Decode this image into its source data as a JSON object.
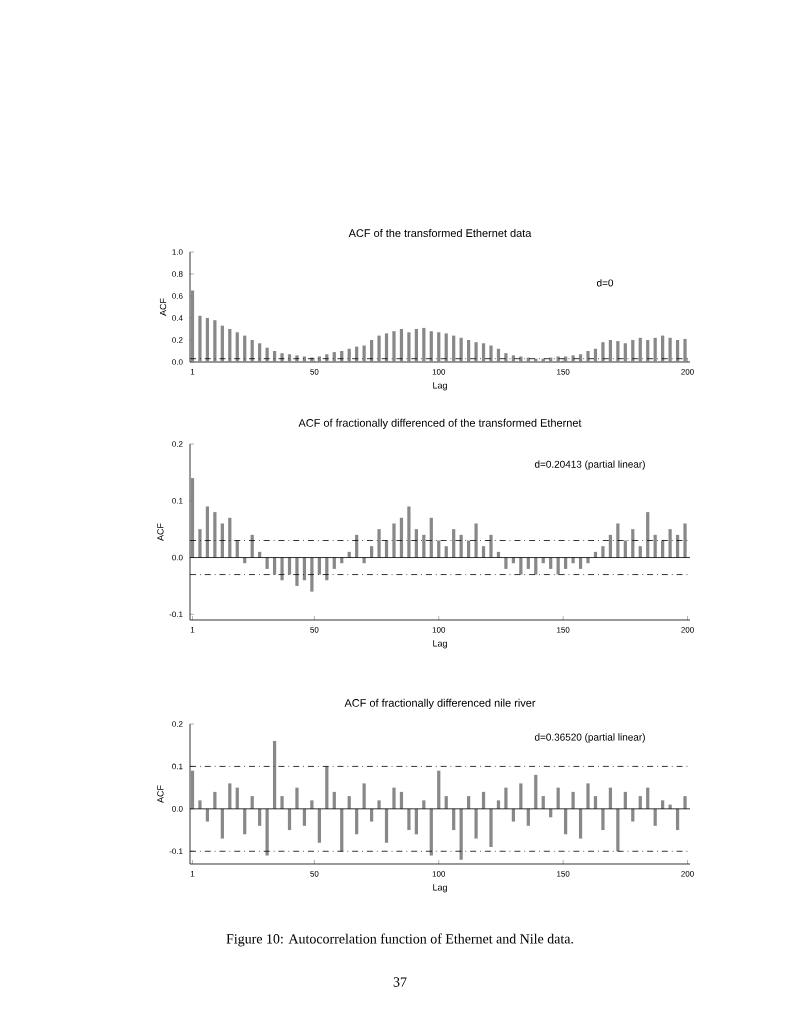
{
  "chart_data": [
    {
      "type": "bar",
      "title": "ACF of the transformed Ethernet data",
      "xlabel": "Lag",
      "ylabel": "ACF",
      "color": "#888888",
      "annotations": [
        "d=0"
      ],
      "x": [
        1,
        4,
        7,
        10,
        13,
        16,
        19,
        22,
        25,
        28,
        31,
        34,
        37,
        40,
        43,
        46,
        49,
        52,
        55,
        58,
        61,
        64,
        67,
        70,
        73,
        76,
        79,
        82,
        85,
        88,
        91,
        94,
        97,
        100,
        103,
        106,
        109,
        112,
        115,
        118,
        121,
        124,
        127,
        130,
        133,
        136,
        139,
        142,
        145,
        148,
        151,
        154,
        157,
        160,
        163,
        166,
        169,
        172,
        175,
        178,
        181,
        184,
        187,
        190,
        193,
        196,
        199
      ],
      "values": [
        0.65,
        0.42,
        0.4,
        0.38,
        0.33,
        0.3,
        0.27,
        0.24,
        0.2,
        0.17,
        0.13,
        0.1,
        0.08,
        0.07,
        0.06,
        0.05,
        0.04,
        0.05,
        0.07,
        0.09,
        0.1,
        0.12,
        0.14,
        0.15,
        0.2,
        0.24,
        0.26,
        0.28,
        0.3,
        0.27,
        0.3,
        0.31,
        0.28,
        0.27,
        0.26,
        0.24,
        0.22,
        0.2,
        0.18,
        0.17,
        0.15,
        0.12,
        0.08,
        0.06,
        0.05,
        0.04,
        0.03,
        0.03,
        0.04,
        0.05,
        0.05,
        0.06,
        0.07,
        0.1,
        0.12,
        0.18,
        0.2,
        0.19,
        0.17,
        0.2,
        0.22,
        0.2,
        0.22,
        0.24,
        0.22,
        0.2,
        0.21
      ],
      "xlim": [
        0,
        201
      ],
      "ylim": [
        0,
        1
      ],
      "xticks": [
        1,
        50,
        100,
        150,
        200
      ],
      "yticks": [
        {
          "value": 0,
          "label": "0.0"
        },
        {
          "value": 0.2,
          "label": "0.2"
        },
        {
          "value": 0.4,
          "label": "0.4"
        },
        {
          "value": 0.6,
          "label": "0.6"
        },
        {
          "value": 0.8,
          "label": "0.8"
        },
        {
          "value": 1,
          "label": "1.0"
        }
      ],
      "ref_lines": [
        {
          "axis": "y",
          "value": 0.03,
          "line_style": "dashed"
        }
      ]
    },
    {
      "type": "bar",
      "title": "ACF of fractionally differenced of the transformed Ethernet",
      "xlabel": "Lag",
      "ylabel": "ACF",
      "color": "#888888",
      "annotations": [
        "d=0.20413 (partial linear)"
      ],
      "x": [
        1,
        4,
        7,
        10,
        13,
        16,
        19,
        22,
        25,
        28,
        31,
        34,
        37,
        40,
        43,
        46,
        49,
        52,
        55,
        58,
        61,
        64,
        67,
        70,
        73,
        76,
        79,
        82,
        85,
        88,
        91,
        94,
        97,
        100,
        103,
        106,
        109,
        112,
        115,
        118,
        121,
        124,
        127,
        130,
        133,
        136,
        139,
        142,
        145,
        148,
        151,
        154,
        157,
        160,
        163,
        166,
        169,
        172,
        175,
        178,
        181,
        184,
        187,
        190,
        193,
        196,
        199
      ],
      "values": [
        0.14,
        0.05,
        0.09,
        0.08,
        0.06,
        0.07,
        0.03,
        -0.01,
        0.04,
        0.01,
        -0.02,
        -0.03,
        -0.04,
        -0.03,
        -0.05,
        -0.04,
        -0.06,
        -0.03,
        -0.04,
        -0.02,
        -0.01,
        0.01,
        0.04,
        -0.01,
        0.02,
        0.05,
        0.03,
        0.06,
        0.07,
        0.09,
        0.05,
        0.04,
        0.07,
        0.03,
        0.02,
        0.05,
        0.04,
        0.03,
        0.06,
        0.02,
        0.04,
        0.01,
        -0.02,
        -0.01,
        -0.03,
        -0.02,
        -0.03,
        -0.01,
        -0.02,
        -0.03,
        -0.02,
        -0.01,
        -0.02,
        -0.01,
        0.01,
        0.02,
        0.04,
        0.06,
        0.03,
        0.05,
        0.02,
        0.08,
        0.04,
        0.03,
        0.05,
        0.04,
        0.06
      ],
      "xlim": [
        0,
        201
      ],
      "ylim": [
        -0.11,
        0.2
      ],
      "xticks": [
        1,
        50,
        100,
        150,
        200
      ],
      "yticks": [
        {
          "value": -0.1,
          "label": "-0.1"
        },
        {
          "value": 0,
          "label": "0.0"
        },
        {
          "value": 0.1,
          "label": "0.1"
        },
        {
          "value": 0.2,
          "label": "0.2"
        }
      ],
      "ref_lines": [
        {
          "axis": "y",
          "value": 0.03,
          "line_style": "dashed"
        },
        {
          "axis": "y",
          "value": -0.03,
          "line_style": "dashed"
        },
        {
          "axis": "y",
          "value": 0,
          "line_style": "solid"
        }
      ]
    },
    {
      "type": "bar",
      "title": "ACF of fractionally differenced nile river",
      "xlabel": "Lag",
      "ylabel": "ACF",
      "color": "#888888",
      "annotations": [
        "d=0.36520 (partial linear)",
        "Figure 10: Autocorrelation function of Ethernet and Nile data.",
        "37"
      ],
      "x": [
        1,
        4,
        7,
        10,
        13,
        16,
        19,
        22,
        25,
        28,
        31,
        34,
        37,
        40,
        43,
        46,
        49,
        52,
        55,
        58,
        61,
        64,
        67,
        70,
        73,
        76,
        79,
        82,
        85,
        88,
        91,
        94,
        97,
        100,
        103,
        106,
        109,
        112,
        115,
        118,
        121,
        124,
        127,
        130,
        133,
        136,
        139,
        142,
        145,
        148,
        151,
        154,
        157,
        160,
        163,
        166,
        169,
        172,
        175,
        178,
        181,
        184,
        187,
        190,
        193,
        196,
        199
      ],
      "values": [
        0.09,
        0.02,
        -0.03,
        0.04,
        -0.07,
        0.06,
        0.05,
        -0.06,
        0.03,
        -0.04,
        -0.11,
        0.16,
        0.03,
        -0.05,
        0.05,
        -0.04,
        0.02,
        -0.08,
        0.1,
        0.04,
        -0.1,
        0.03,
        -0.06,
        0.06,
        -0.03,
        0.02,
        -0.08,
        0.05,
        0.04,
        -0.05,
        -0.06,
        0.02,
        -0.11,
        0.09,
        0.03,
        -0.05,
        -0.12,
        0.03,
        -0.07,
        0.04,
        -0.09,
        0.02,
        0.05,
        -0.03,
        0.06,
        -0.04,
        0.08,
        0.03,
        -0.02,
        0.05,
        -0.06,
        0.04,
        -0.07,
        0.06,
        0.03,
        -0.05,
        0.05,
        -0.1,
        0.04,
        -0.03,
        0.03,
        0.05,
        -0.04,
        0.02,
        0.01,
        -0.05,
        0.03
      ],
      "xlim": [
        0,
        201
      ],
      "ylim": [
        -0.13,
        0.2
      ],
      "xticks": [
        1,
        50,
        100,
        150,
        200
      ],
      "yticks": [
        {
          "value": -0.1,
          "label": "-0.1"
        },
        {
          "value": 0,
          "label": "0.0"
        },
        {
          "value": 0.1,
          "label": "0.1"
        },
        {
          "value": 0.2,
          "label": "0.2"
        }
      ],
      "ref_lines": [
        {
          "axis": "y",
          "value": 0.1,
          "line_style": "dashed"
        },
        {
          "axis": "y",
          "value": -0.1,
          "line_style": "dashed"
        },
        {
          "axis": "y",
          "value": 0,
          "line_style": "solid"
        }
      ]
    }
  ]
}
